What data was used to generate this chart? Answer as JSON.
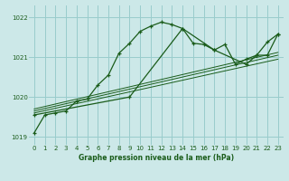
{
  "bg_color": "#cce8e8",
  "grid_color": "#99cccc",
  "line_color": "#1a5c1a",
  "title": "Graphe pression niveau de la mer (hPa)",
  "xlim": [
    -0.5,
    23.5
  ],
  "ylim": [
    1018.8,
    1022.3
  ],
  "yticks": [
    1019,
    1020,
    1021,
    1022
  ],
  "xticks": [
    0,
    1,
    2,
    3,
    4,
    5,
    6,
    7,
    8,
    9,
    10,
    11,
    12,
    13,
    14,
    15,
    16,
    17,
    18,
    19,
    20,
    21,
    22,
    23
  ],
  "main_line_x": [
    0,
    1,
    2,
    3,
    4,
    5,
    6,
    7,
    8,
    9,
    10,
    11,
    12,
    13,
    14,
    15,
    16,
    17,
    18,
    19,
    20,
    21,
    22,
    23
  ],
  "main_line_y": [
    1019.1,
    1019.55,
    1019.6,
    1019.65,
    1019.9,
    1019.95,
    1020.3,
    1020.55,
    1021.1,
    1021.35,
    1021.65,
    1021.78,
    1021.88,
    1021.82,
    1021.72,
    1021.35,
    1021.32,
    1021.18,
    1021.32,
    1020.82,
    1020.95,
    1021.05,
    1021.38,
    1021.58
  ],
  "trend1_x": [
    0,
    23
  ],
  "trend1_y": [
    1019.6,
    1020.95
  ],
  "trend2_x": [
    0,
    23
  ],
  "trend2_y": [
    1019.65,
    1021.05
  ],
  "trend3_x": [
    0,
    23
  ],
  "trend3_y": [
    1019.7,
    1021.12
  ],
  "seg_line_x": [
    0,
    9,
    14,
    17,
    20,
    21,
    22,
    23
  ],
  "seg_line_y": [
    1019.55,
    1020.0,
    1021.72,
    1021.18,
    1020.82,
    1021.05,
    1021.05,
    1021.58
  ]
}
